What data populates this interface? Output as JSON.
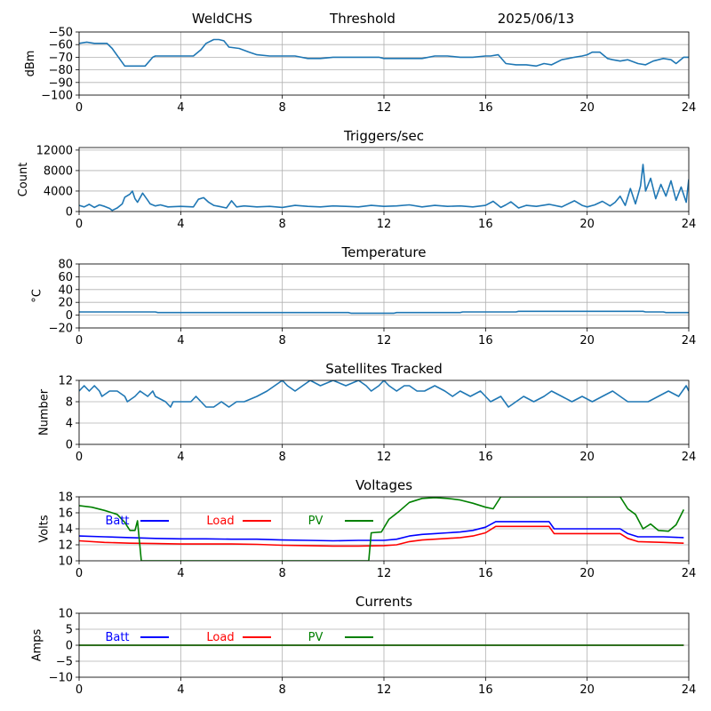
{
  "header": {
    "station": "WeldCHS",
    "mode": "Threshold",
    "date": "2025/06/13"
  },
  "colors": {
    "default_series": "#1f77b4",
    "batt": "#0000ff",
    "load": "#ff0000",
    "pv": "#008000",
    "grid": "#b0b0b0"
  },
  "chart_data": [
    {
      "id": "signal",
      "type": "line",
      "title": "",
      "xlabel": "",
      "ylabel": "dBm",
      "xlim": [
        0,
        24
      ],
      "ylim": [
        -100,
        -50
      ],
      "xticks": [
        0,
        4,
        8,
        12,
        16,
        20,
        24
      ],
      "yticks": [
        -100,
        -90,
        -80,
        -70,
        -60,
        -50
      ],
      "grid": true,
      "series": [
        {
          "color_key": "default_series",
          "x": [
            0,
            0.3,
            0.6,
            1.1,
            1.3,
            1.8,
            2.2,
            2.6,
            2.9,
            3.0,
            3.4,
            4.0,
            4.5,
            4.8,
            5.0,
            5.3,
            5.5,
            5.7,
            5.9,
            6.3,
            6.7,
            7.0,
            7.5,
            8.0,
            8.5,
            9.0,
            9.5,
            10.0,
            11.0,
            11.5,
            11.8,
            12.0,
            12.5,
            13.0,
            13.5,
            14.0,
            14.5,
            15.0,
            15.5,
            16.0,
            16.2,
            16.5,
            16.8,
            17.2,
            17.6,
            18.0,
            18.3,
            18.6,
            19.0,
            19.5,
            19.8,
            20.0,
            20.2,
            20.5,
            20.8,
            21.0,
            21.3,
            21.6,
            22.0,
            22.3,
            22.6,
            23.0,
            23.3,
            23.5,
            23.8,
            24.0
          ],
          "y": [
            -59,
            -58,
            -59,
            -59,
            -63,
            -77,
            -77,
            -77,
            -70,
            -69,
            -69,
            -69,
            -69,
            -64,
            -59,
            -56,
            -56,
            -57,
            -62,
            -63,
            -66,
            -68,
            -69,
            -69,
            -69,
            -71,
            -71,
            -70,
            -70,
            -70,
            -70,
            -71,
            -71,
            -71,
            -71,
            -69,
            -69,
            -70,
            -70,
            -69,
            -69,
            -68,
            -75,
            -76,
            -76,
            -77,
            -75,
            -76,
            -72,
            -70,
            -69,
            -68,
            -66,
            -66,
            -71,
            -72,
            -73,
            -72,
            -75,
            -76,
            -73,
            -71,
            -72,
            -75,
            -70,
            -70
          ]
        }
      ]
    },
    {
      "id": "triggers",
      "type": "line",
      "title": "Triggers/sec",
      "xlabel": "",
      "ylabel": "Count",
      "xlim": [
        0,
        24
      ],
      "ylim": [
        0,
        12500
      ],
      "xticks": [
        0,
        4,
        8,
        12,
        16,
        20,
        24
      ],
      "yticks": [
        0,
        4000,
        8000,
        12000
      ],
      "grid": true,
      "series": [
        {
          "color_key": "default_series",
          "x": [
            0,
            0.2,
            0.4,
            0.6,
            0.8,
            1.0,
            1.2,
            1.3,
            1.5,
            1.7,
            1.8,
            2.0,
            2.1,
            2.2,
            2.3,
            2.5,
            2.7,
            2.8,
            3.0,
            3.2,
            3.5,
            4.0,
            4.5,
            4.7,
            4.9,
            5.1,
            5.3,
            5.5,
            5.8,
            6.0,
            6.2,
            6.5,
            7.0,
            7.5,
            8.0,
            8.5,
            9.0,
            9.5,
            10.0,
            10.5,
            11.0,
            11.5,
            12.0,
            12.5,
            13.0,
            13.5,
            14.0,
            14.5,
            15.0,
            15.5,
            16.0,
            16.3,
            16.6,
            16.8,
            17.0,
            17.3,
            17.6,
            18.0,
            18.5,
            19.0,
            19.5,
            19.8,
            20.0,
            20.3,
            20.6,
            20.9,
            21.1,
            21.3,
            21.5,
            21.7,
            21.9,
            22.1,
            22.2,
            22.3,
            22.5,
            22.7,
            22.9,
            23.1,
            23.3,
            23.5,
            23.7,
            23.9,
            24.0
          ],
          "y": [
            1200,
            900,
            1400,
            800,
            1300,
            1000,
            600,
            200,
            700,
            1500,
            2800,
            3400,
            4000,
            2500,
            1800,
            3600,
            2200,
            1500,
            1100,
            1300,
            900,
            1000,
            900,
            2400,
            2700,
            1800,
            1200,
            1000,
            700,
            2100,
            900,
            1100,
            900,
            1000,
            800,
            1200,
            1000,
            900,
            1100,
            1000,
            900,
            1200,
            1000,
            1100,
            1300,
            900,
            1200,
            1000,
            1100,
            900,
            1200,
            2000,
            800,
            1300,
            1900,
            700,
            1200,
            1000,
            1400,
            900,
            2100,
            1200,
            900,
            1300,
            2000,
            1100,
            1800,
            3000,
            1200,
            4500,
            1500,
            5000,
            9200,
            4000,
            6500,
            2500,
            5300,
            3000,
            6000,
            2200,
            4800,
            1800,
            6300
          ]
        }
      ]
    },
    {
      "id": "temperature",
      "type": "line",
      "title": "Temperature",
      "xlabel": "",
      "ylabel": "°C",
      "xlim": [
        0,
        24
      ],
      "ylim": [
        -20,
        80
      ],
      "xticks": [
        0,
        4,
        8,
        12,
        16,
        20,
        24
      ],
      "yticks": [
        -20,
        0,
        20,
        40,
        60,
        80
      ],
      "grid": true,
      "series": [
        {
          "color_key": "default_series",
          "x": [
            0,
            3.0,
            3.1,
            10.6,
            10.7,
            12.4,
            12.5,
            15.0,
            15.1,
            17.2,
            17.3,
            22.2,
            22.3,
            23.0,
            23.1,
            24.0
          ],
          "y": [
            5,
            5,
            4,
            4,
            3,
            3,
            4,
            4,
            5,
            5,
            6,
            6,
            5,
            5,
            4,
            4
          ]
        }
      ]
    },
    {
      "id": "satellites",
      "type": "line",
      "title": "Satellites Tracked",
      "xlabel": "",
      "ylabel": "Number",
      "xlim": [
        0,
        24
      ],
      "ylim": [
        0,
        12
      ],
      "xticks": [
        0,
        4,
        8,
        12,
        16,
        20,
        24
      ],
      "yticks": [
        0,
        4,
        8,
        12
      ],
      "grid": true,
      "series": [
        {
          "color_key": "default_series",
          "x": [
            0,
            0.2,
            0.4,
            0.6,
            0.8,
            0.9,
            1.2,
            1.5,
            1.8,
            1.9,
            2.2,
            2.4,
            2.7,
            2.9,
            3.0,
            3.4,
            3.6,
            3.7,
            4.0,
            4.4,
            4.6,
            4.8,
            5.0,
            5.3,
            5.6,
            5.9,
            6.2,
            6.5,
            7.0,
            7.4,
            7.7,
            8.0,
            8.2,
            8.5,
            8.8,
            9.1,
            9.5,
            10.0,
            10.5,
            11.0,
            11.3,
            11.5,
            11.8,
            12.0,
            12.2,
            12.5,
            12.8,
            13.0,
            13.3,
            13.6,
            14.0,
            14.4,
            14.7,
            15.0,
            15.4,
            15.8,
            16.2,
            16.6,
            16.9,
            17.2,
            17.5,
            17.9,
            18.3,
            18.6,
            19.0,
            19.4,
            19.8,
            20.2,
            20.6,
            21.0,
            21.3,
            21.6,
            22.0,
            22.4,
            22.8,
            23.2,
            23.6,
            23.9,
            24.0
          ],
          "y": [
            10,
            11,
            10,
            11,
            10,
            9,
            10,
            10,
            9,
            8,
            9,
            10,
            9,
            10,
            9,
            8,
            7,
            8,
            8,
            8,
            9,
            8,
            7,
            7,
            8,
            7,
            8,
            8,
            9,
            10,
            11,
            12,
            11,
            10,
            11,
            12,
            11,
            12,
            11,
            12,
            11,
            10,
            11,
            12,
            11,
            10,
            11,
            11,
            10,
            10,
            11,
            10,
            9,
            10,
            9,
            10,
            8,
            9,
            7,
            8,
            9,
            8,
            9,
            10,
            9,
            8,
            9,
            8,
            9,
            10,
            9,
            8,
            8,
            8,
            9,
            10,
            9,
            11,
            10
          ]
        }
      ]
    },
    {
      "id": "voltages",
      "type": "line",
      "title": "Voltages",
      "xlabel": "",
      "ylabel": "Volts",
      "xlim": [
        0,
        24
      ],
      "ylim": [
        10,
        18
      ],
      "xticks": [
        0,
        4,
        8,
        12,
        16,
        20,
        24
      ],
      "yticks": [
        10,
        12,
        14,
        16,
        18
      ],
      "grid": true,
      "legend": [
        "Batt",
        "Load",
        "PV"
      ],
      "series": [
        {
          "name": "Batt",
          "color_key": "batt",
          "x": [
            0,
            1,
            2,
            3,
            4,
            5,
            6,
            7,
            8,
            9,
            10,
            11,
            12,
            12.5,
            13,
            13.5,
            14,
            14.5,
            15,
            15.5,
            16,
            16.4,
            16.8,
            17.5,
            18.5,
            18.7,
            19.5,
            20.5,
            21.3,
            21.6,
            22,
            23,
            23.8
          ],
          "y": [
            13.1,
            13.0,
            12.9,
            12.8,
            12.75,
            12.75,
            12.7,
            12.7,
            12.6,
            12.55,
            12.5,
            12.55,
            12.55,
            12.7,
            13.1,
            13.3,
            13.4,
            13.5,
            13.6,
            13.8,
            14.2,
            14.9,
            14.9,
            14.9,
            14.9,
            14.0,
            14.0,
            14.0,
            14.0,
            13.4,
            13.0,
            13.0,
            12.9
          ]
        },
        {
          "name": "Load",
          "color_key": "load",
          "x": [
            0,
            1,
            2,
            3,
            4,
            5,
            6,
            7,
            8,
            9,
            10,
            11,
            12,
            12.5,
            13,
            13.5,
            14,
            14.5,
            15,
            15.5,
            16,
            16.4,
            16.8,
            17.5,
            18.5,
            18.7,
            19.5,
            20.5,
            21.3,
            21.6,
            22,
            23,
            23.8
          ],
          "y": [
            12.5,
            12.3,
            12.2,
            12.15,
            12.1,
            12.1,
            12.1,
            12.05,
            11.95,
            11.9,
            11.85,
            11.85,
            11.9,
            12.0,
            12.4,
            12.6,
            12.7,
            12.8,
            12.9,
            13.1,
            13.5,
            14.3,
            14.3,
            14.3,
            14.3,
            13.4,
            13.4,
            13.4,
            13.4,
            12.8,
            12.4,
            12.3,
            12.2
          ]
        },
        {
          "name": "PV",
          "color_key": "pv",
          "x": [
            0,
            0.5,
            1.0,
            1.5,
            1.8,
            2.0,
            2.2,
            2.3,
            2.45,
            11.4,
            11.5,
            11.9,
            12.2,
            12.6,
            13.0,
            13.5,
            14.0,
            14.5,
            15.0,
            15.5,
            16.0,
            16.3,
            16.6,
            16.9,
            17.2,
            21.3,
            21.6,
            21.9,
            22.2,
            22.5,
            22.8,
            23.2,
            23.5,
            23.8
          ],
          "y": [
            16.9,
            16.7,
            16.3,
            15.8,
            14.8,
            13.8,
            13.8,
            15.0,
            10.0,
            10.0,
            13.5,
            13.6,
            15.2,
            16.2,
            17.3,
            17.8,
            17.9,
            17.8,
            17.6,
            17.2,
            16.7,
            16.5,
            18.0,
            18.0,
            18.0,
            18.0,
            16.5,
            15.8,
            14.0,
            14.6,
            13.8,
            13.7,
            14.5,
            16.4
          ]
        }
      ]
    },
    {
      "id": "currents",
      "type": "line",
      "title": "Currents",
      "xlabel": "",
      "ylabel": "Amps",
      "xlim": [
        0,
        24
      ],
      "ylim": [
        -10,
        10
      ],
      "xticks": [
        0,
        4,
        8,
        12,
        16,
        20,
        24
      ],
      "yticks": [
        -10,
        -5,
        0,
        5,
        10
      ],
      "grid": true,
      "legend": [
        "Batt",
        "Load",
        "PV"
      ],
      "series": [
        {
          "name": "Batt",
          "color_key": "batt",
          "x": [
            0,
            23.8
          ],
          "y": [
            0,
            0
          ]
        },
        {
          "name": "Load",
          "color_key": "load",
          "x": [
            0,
            23.8
          ],
          "y": [
            0,
            0
          ]
        },
        {
          "name": "PV",
          "color_key": "pv",
          "x": [
            0,
            23.8
          ],
          "y": [
            0,
            0
          ]
        }
      ]
    }
  ]
}
